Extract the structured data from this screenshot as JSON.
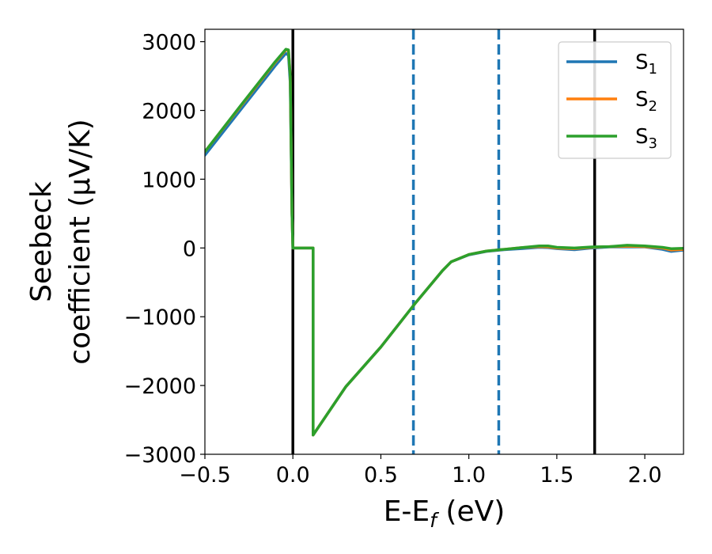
{
  "chart_data": {
    "type": "line",
    "xlabel": "E-E",
    "xlabel_sub": "f",
    "xlabel_unit": " (eV)",
    "ylabel_line1": "Seebeck",
    "ylabel_line2": "coefficient  (μV/K)",
    "xlim": [
      -0.5,
      2.22
    ],
    "ylim": [
      -3000,
      3180
    ],
    "xticks": [
      -0.5,
      0.0,
      0.5,
      1.0,
      1.5,
      2.0
    ],
    "xtick_labels": [
      "−0.5",
      "0.0",
      "0.5",
      "1.0",
      "1.5",
      "2.0"
    ],
    "yticks": [
      -3000,
      -2000,
      -1000,
      0,
      1000,
      2000,
      3000
    ],
    "ytick_labels": [
      "−3000",
      "−2000",
      "−1000",
      "0",
      "1000",
      "2000",
      "3000"
    ],
    "vlines": [
      {
        "x": 0.0,
        "color": "#000000",
        "style": "solid"
      },
      {
        "x": 0.685,
        "color": "#1f77b4",
        "style": "dashed"
      },
      {
        "x": 1.17,
        "color": "#1f77b4",
        "style": "dashed"
      },
      {
        "x": 1.715,
        "color": "#000000",
        "style": "solid"
      }
    ],
    "legend_position": "top-right",
    "series": [
      {
        "name": "S",
        "sub": "1",
        "color": "#1f77b4",
        "x": [
          -0.5,
          -0.3,
          -0.1,
          -0.04,
          -0.025,
          -0.015,
          -0.005,
          0.0,
          0.115,
          0.115,
          0.3,
          0.5,
          0.7,
          0.85,
          0.9,
          1.0,
          1.1,
          1.2,
          1.3,
          1.4,
          1.45,
          1.5,
          1.6,
          1.7,
          1.8,
          1.9,
          2.0,
          2.1,
          2.15,
          2.22
        ],
        "y": [
          1350,
          2000,
          2650,
          2830,
          2800,
          2400,
          500,
          0,
          0,
          -2720,
          -2020,
          -1440,
          -790,
          -330,
          -200,
          -100,
          -50,
          -25,
          -10,
          10,
          5,
          -10,
          -25,
          0,
          15,
          15,
          15,
          -20,
          -50,
          -30
        ]
      },
      {
        "name": "S",
        "sub": "2",
        "color": "#ff7f0e",
        "x": [
          -0.5,
          -0.3,
          -0.1,
          -0.04,
          -0.025,
          -0.015,
          -0.005,
          0.0,
          0.115,
          0.115,
          0.3,
          0.5,
          0.7,
          0.85,
          0.9,
          1.0,
          1.1,
          1.2,
          1.3,
          1.4,
          1.45,
          1.5,
          1.6,
          1.7,
          1.8,
          1.9,
          2.0,
          2.1,
          2.15,
          2.22
        ],
        "y": [
          1400,
          2050,
          2700,
          2880,
          2870,
          2500,
          500,
          0,
          0,
          -2720,
          -2020,
          -1440,
          -790,
          -330,
          -200,
          -95,
          -45,
          -20,
          5,
          20,
          15,
          0,
          -10,
          10,
          20,
          25,
          20,
          0,
          -30,
          -20
        ]
      },
      {
        "name": "S",
        "sub": "3",
        "color": "#2ca02c",
        "x": [
          -0.5,
          -0.3,
          -0.1,
          -0.04,
          -0.025,
          -0.015,
          -0.005,
          0.0,
          0.115,
          0.115,
          0.3,
          0.5,
          0.7,
          0.85,
          0.9,
          1.0,
          1.1,
          1.2,
          1.3,
          1.4,
          1.45,
          1.5,
          1.6,
          1.7,
          1.8,
          1.9,
          2.0,
          2.1,
          2.15,
          2.22
        ],
        "y": [
          1400,
          2060,
          2710,
          2890,
          2880,
          2500,
          500,
          0,
          0,
          -2720,
          -2020,
          -1440,
          -790,
          -330,
          -200,
          -95,
          -45,
          -20,
          5,
          30,
          30,
          10,
          0,
          15,
          20,
          40,
          30,
          10,
          -10,
          -5
        ]
      }
    ]
  }
}
